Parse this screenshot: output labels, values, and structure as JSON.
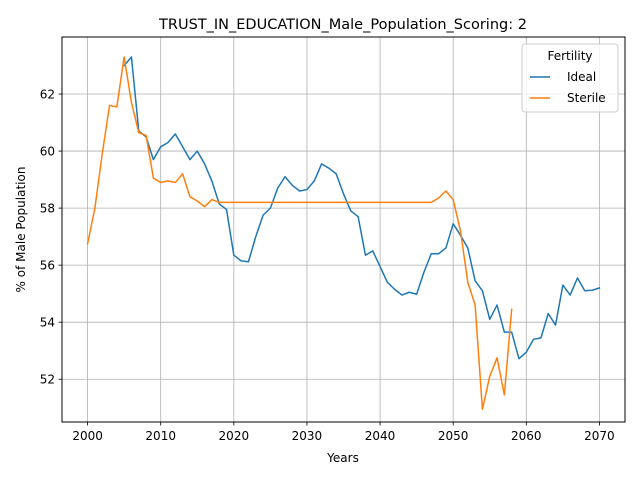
{
  "chart_data": {
    "type": "line",
    "title": "TRUST_IN_EDUCATION_Male_Population_Scoring: 2",
    "xlabel": "Years",
    "ylabel": "% of Male Population",
    "xlim": [
      1996.5,
      2073.5
    ],
    "ylim": [
      50.5,
      64.0
    ],
    "xticks": [
      2000,
      2010,
      2020,
      2030,
      2040,
      2050,
      2060,
      2070
    ],
    "yticks": [
      52,
      54,
      56,
      58,
      60,
      62
    ],
    "grid": true,
    "legend": {
      "title": "Fertility",
      "placement": "top-right"
    },
    "series": [
      {
        "name": "Ideal",
        "color": "#1f77b4",
        "points": [
          [
            2005,
            63.0
          ],
          [
            2006,
            63.3
          ],
          [
            2007,
            60.7
          ],
          [
            2008,
            60.5
          ],
          [
            2009,
            59.7
          ],
          [
            2010,
            60.15
          ],
          [
            2011,
            60.3
          ],
          [
            2012,
            60.6
          ],
          [
            2013,
            60.15
          ],
          [
            2014,
            59.7
          ],
          [
            2015,
            60.0
          ],
          [
            2016,
            59.55
          ],
          [
            2017,
            58.95
          ],
          [
            2018,
            58.15
          ],
          [
            2019,
            57.95
          ],
          [
            2020,
            56.35
          ],
          [
            2021,
            56.15
          ],
          [
            2022,
            56.12
          ],
          [
            2023,
            57.0
          ],
          [
            2024,
            57.75
          ],
          [
            2025,
            58.0
          ],
          [
            2026,
            58.7
          ],
          [
            2027,
            59.1
          ],
          [
            2028,
            58.8
          ],
          [
            2029,
            58.6
          ],
          [
            2030,
            58.65
          ],
          [
            2031,
            58.95
          ],
          [
            2032,
            59.55
          ],
          [
            2033,
            59.4
          ],
          [
            2034,
            59.2
          ],
          [
            2035,
            58.5
          ],
          [
            2036,
            57.9
          ],
          [
            2037,
            57.7
          ],
          [
            2038,
            56.35
          ],
          [
            2039,
            56.5
          ],
          [
            2040,
            55.95
          ],
          [
            2041,
            55.4
          ],
          [
            2042,
            55.15
          ],
          [
            2043,
            54.95
          ],
          [
            2044,
            55.05
          ],
          [
            2045,
            54.98
          ],
          [
            2046,
            55.75
          ],
          [
            2047,
            56.4
          ],
          [
            2048,
            56.4
          ],
          [
            2049,
            56.6
          ],
          [
            2050,
            57.45
          ],
          [
            2051,
            57.05
          ],
          [
            2052,
            56.6
          ],
          [
            2053,
            55.45
          ],
          [
            2054,
            55.1
          ],
          [
            2055,
            54.1
          ],
          [
            2056,
            54.6
          ],
          [
            2057,
            53.65
          ],
          [
            2058,
            53.65
          ],
          [
            2059,
            52.72
          ],
          [
            2060,
            52.95
          ],
          [
            2061,
            53.4
          ],
          [
            2062,
            53.45
          ],
          [
            2063,
            54.3
          ],
          [
            2064,
            53.9
          ],
          [
            2065,
            55.3
          ],
          [
            2066,
            54.95
          ],
          [
            2067,
            55.55
          ],
          [
            2068,
            55.1
          ],
          [
            2069,
            55.12
          ],
          [
            2070,
            55.2
          ]
        ]
      },
      {
        "name": "Sterile",
        "color": "#ff7f0e",
        "points": [
          [
            2000,
            56.75
          ],
          [
            2001,
            58.0
          ],
          [
            2002,
            59.9
          ],
          [
            2003,
            61.6
          ],
          [
            2004,
            61.55
          ],
          [
            2005,
            63.3
          ],
          [
            2006,
            61.7
          ],
          [
            2007,
            60.65
          ],
          [
            2008,
            60.55
          ],
          [
            2009,
            59.05
          ],
          [
            2010,
            58.9
          ],
          [
            2011,
            58.95
          ],
          [
            2012,
            58.9
          ],
          [
            2013,
            59.2
          ],
          [
            2014,
            58.4
          ],
          [
            2015,
            58.25
          ],
          [
            2016,
            58.05
          ],
          [
            2017,
            58.3
          ],
          [
            2018,
            58.2
          ],
          [
            2019,
            58.2
          ],
          [
            2020,
            58.2
          ],
          [
            2025,
            58.2
          ],
          [
            2030,
            58.2
          ],
          [
            2035,
            58.2
          ],
          [
            2040,
            58.2
          ],
          [
            2045,
            58.2
          ],
          [
            2047,
            58.2
          ],
          [
            2048,
            58.35
          ],
          [
            2049,
            58.6
          ],
          [
            2050,
            58.3
          ],
          [
            2051,
            57.2
          ],
          [
            2052,
            55.4
          ],
          [
            2053,
            54.6
          ],
          [
            2054,
            50.95
          ],
          [
            2055,
            52.1
          ],
          [
            2056,
            52.75
          ],
          [
            2057,
            51.45
          ],
          [
            2058,
            54.45
          ]
        ]
      }
    ]
  }
}
